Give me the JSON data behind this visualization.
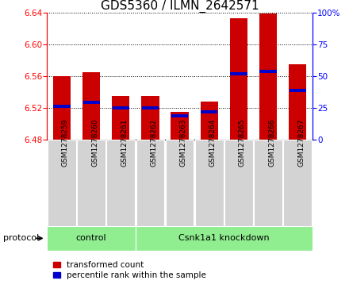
{
  "title": "GDS5360 / ILMN_2642571",
  "samples": [
    "GSM1278259",
    "GSM1278260",
    "GSM1278261",
    "GSM1278262",
    "GSM1278263",
    "GSM1278264",
    "GSM1278265",
    "GSM1278266",
    "GSM1278267"
  ],
  "bar_tops": [
    6.56,
    6.565,
    6.535,
    6.535,
    6.515,
    6.528,
    6.633,
    6.639,
    6.575
  ],
  "bar_bottoms": [
    6.48,
    6.48,
    6.48,
    6.48,
    6.48,
    6.48,
    6.48,
    6.48,
    6.48
  ],
  "percentile_values": [
    6.522,
    6.527,
    6.52,
    6.52,
    6.51,
    6.515,
    6.563,
    6.566,
    6.542
  ],
  "ylim_left": [
    6.48,
    6.64
  ],
  "ylim_right": [
    0,
    100
  ],
  "yticks_left": [
    6.48,
    6.52,
    6.56,
    6.6,
    6.64
  ],
  "yticks_right": [
    0,
    25,
    50,
    75,
    100
  ],
  "bar_color": "#cc0000",
  "blue_color": "#0000cc",
  "bar_width": 0.6,
  "control_label": "control",
  "knockdown_label": "Csnk1a1 knockdown",
  "protocol_label": "protocol",
  "legend_red_label": "transformed count",
  "legend_blue_label": "percentile rank within the sample",
  "plot_bg": "#ffffff",
  "cell_bg": "#d3d3d3",
  "protocol_bg": "#90ee90",
  "title_fontsize": 11,
  "tick_fontsize": 7.5,
  "sample_fontsize": 6.5,
  "proto_fontsize": 8,
  "legend_fontsize": 7.5,
  "n_control": 3,
  "n_knockdown": 6
}
